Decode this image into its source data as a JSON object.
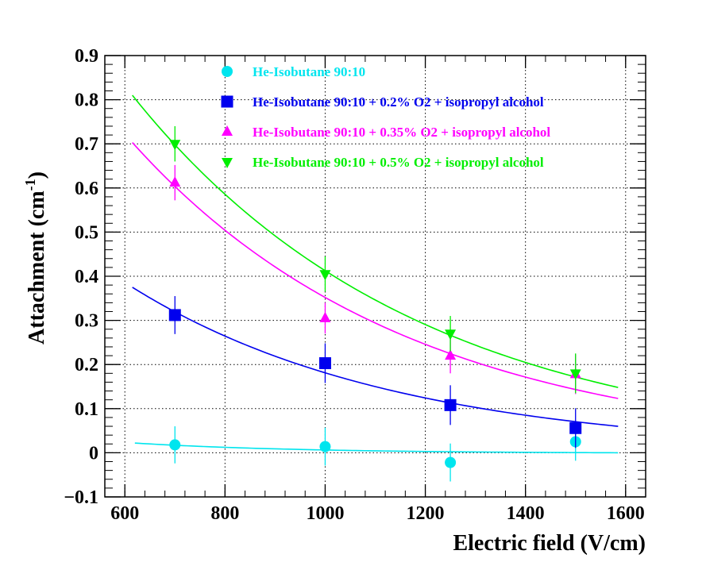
{
  "chart_data": {
    "type": "scatter",
    "title": "",
    "xlabel": "Electric field (V/cm)",
    "ylabel_main": "Attachment (cm",
    "ylabel_sup": "-1",
    "ylabel_close": ")",
    "xlim": [
      560,
      1640
    ],
    "ylim": [
      -0.1,
      0.9
    ],
    "xticks": [
      600,
      800,
      1000,
      1200,
      1400,
      1600
    ],
    "xtick_labels": [
      "600",
      "800",
      "1000",
      "1200",
      "1400",
      "1600"
    ],
    "yticks": [
      -0.1,
      0,
      0.1,
      0.2,
      0.3,
      0.4,
      0.5,
      0.6,
      0.7,
      0.8,
      0.9
    ],
    "ytick_labels": [
      "−0.1",
      "0",
      "0.1",
      "0.2",
      "0.3",
      "0.4",
      "0.5",
      "0.6",
      "0.7",
      "0.8",
      "0.9"
    ],
    "grid": true,
    "legend_position": "top-center",
    "series": [
      {
        "name": "He-Isobutane 90:10",
        "color": "#00e5ee",
        "marker": "circle",
        "x": [
          700,
          1000,
          1250,
          1500
        ],
        "y": [
          0.018,
          0.014,
          -0.022,
          0.025
        ],
        "yerr": [
          0.042,
          0.043,
          0.043,
          0.043
        ],
        "fit": {
          "x0": 620,
          "x1": 1585,
          "y_start": 0.022,
          "y_end": 0.0,
          "decay": 0.006
        }
      },
      {
        "name": "He-Isobutane 90:10 + 0.2% O2 + isopropyl alcohol",
        "color": "#0000ee",
        "marker": "square",
        "x": [
          700,
          1000,
          1250,
          1500
        ],
        "y": [
          0.312,
          0.203,
          0.108,
          0.056
        ],
        "yerr": [
          0.043,
          0.045,
          0.045,
          0.045
        ],
        "fit": {
          "x0": 615,
          "x1": 1585,
          "y_start": 0.375,
          "y_end": 0.06,
          "decay": 0
        }
      },
      {
        "name": "He-Isobutane 90:10 + 0.35% O2  + isopropyl alcohol",
        "color": "#ff00ff",
        "marker": "triangle-up",
        "x": [
          700,
          1000,
          1250,
          1500
        ],
        "y": [
          0.612,
          0.305,
          0.22,
          0.178
        ],
        "yerr": [
          0.04,
          0.035,
          0.04,
          0.045
        ],
        "fit": {
          "x0": 615,
          "x1": 1585,
          "y_start": 0.703,
          "y_end": 0.123,
          "decay": 0
        }
      },
      {
        "name": "He-Isobutane 90:10 + 0.5% O2 + isopropyl alcohol",
        "color": "#00ee00",
        "marker": "triangle-down",
        "x": [
          700,
          1000,
          1250,
          1500
        ],
        "y": [
          0.7,
          0.405,
          0.27,
          0.18
        ],
        "yerr": [
          0.04,
          0.04,
          0.04,
          0.045
        ],
        "fit": {
          "x0": 615,
          "x1": 1585,
          "y_start": 0.81,
          "y_end": 0.148,
          "decay": 0
        }
      }
    ]
  }
}
